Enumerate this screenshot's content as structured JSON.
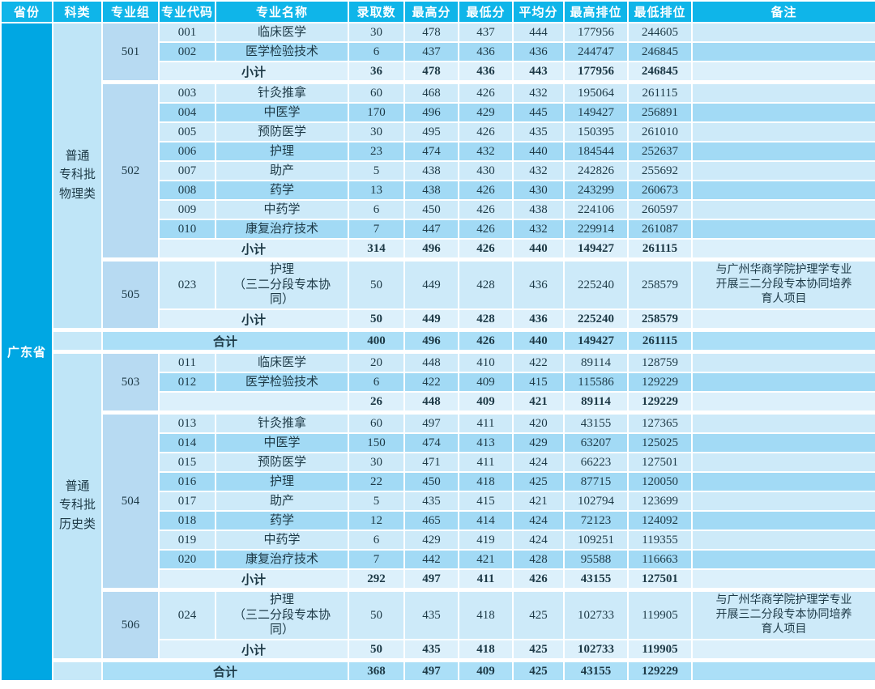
{
  "colors": {
    "header_bg": "#0fb5e9",
    "province_bg": "#00a7e3",
    "category_bg": "#bfe5f7",
    "group_bg": "#b7daf2",
    "row_light": "#cdeaf9",
    "row_dark": "#a2daf5",
    "subtotal_bg": "#dcf0fb",
    "total_bg": "#abdff7",
    "grid": "#ffffff",
    "text": "#1d3946"
  },
  "table": {
    "headers": [
      "省份",
      "科类",
      "专业组",
      "专业代码",
      "专业名称",
      "录取数",
      "最高分",
      "最低分",
      "平均分",
      "最高排位",
      "最低排位",
      "备注"
    ],
    "province": "广东省",
    "sections": [
      {
        "category": "普通\n专科批\n物理类",
        "groups": [
          {
            "group": "501",
            "rows": [
              {
                "code": "001",
                "name": "临床医学",
                "count": "30",
                "max": "478",
                "min": "437",
                "avg": "444",
                "maxRank": "177956",
                "minRank": "244605",
                "remark": ""
              },
              {
                "code": "002",
                "name": "医学检验技术",
                "count": "6",
                "max": "437",
                "min": "436",
                "avg": "436",
                "maxRank": "244747",
                "minRank": "246845",
                "remark": ""
              }
            ],
            "subtotal": {
              "label": "小计",
              "count": "36",
              "max": "478",
              "min": "436",
              "avg": "443",
              "maxRank": "177956",
              "minRank": "246845",
              "remark": ""
            }
          },
          {
            "group": "502",
            "rows": [
              {
                "code": "003",
                "name": "针灸推拿",
                "count": "60",
                "max": "468",
                "min": "426",
                "avg": "432",
                "maxRank": "195064",
                "minRank": "261115",
                "remark": ""
              },
              {
                "code": "004",
                "name": "中医学",
                "count": "170",
                "max": "496",
                "min": "429",
                "avg": "445",
                "maxRank": "149427",
                "minRank": "256891",
                "remark": ""
              },
              {
                "code": "005",
                "name": "预防医学",
                "count": "30",
                "max": "495",
                "min": "426",
                "avg": "435",
                "maxRank": "150395",
                "minRank": "261010",
                "remark": ""
              },
              {
                "code": "006",
                "name": "护理",
                "count": "23",
                "max": "474",
                "min": "432",
                "avg": "440",
                "maxRank": "184544",
                "minRank": "252637",
                "remark": ""
              },
              {
                "code": "007",
                "name": "助产",
                "count": "5",
                "max": "438",
                "min": "430",
                "avg": "432",
                "maxRank": "242826",
                "minRank": "255692",
                "remark": ""
              },
              {
                "code": "008",
                "name": "药学",
                "count": "13",
                "max": "438",
                "min": "426",
                "avg": "430",
                "maxRank": "243299",
                "minRank": "260673",
                "remark": ""
              },
              {
                "code": "009",
                "name": "中药学",
                "count": "6",
                "max": "450",
                "min": "426",
                "avg": "438",
                "maxRank": "224106",
                "minRank": "260597",
                "remark": ""
              },
              {
                "code": "010",
                "name": "康复治疗技术",
                "count": "7",
                "max": "447",
                "min": "426",
                "avg": "432",
                "maxRank": "229914",
                "minRank": "261087",
                "remark": ""
              }
            ],
            "subtotal": {
              "label": "小计",
              "count": "314",
              "max": "496",
              "min": "426",
              "avg": "440",
              "maxRank": "149427",
              "minRank": "261115",
              "remark": ""
            }
          },
          {
            "group": "505",
            "rows": [
              {
                "code": "023",
                "name": "护理\n（三二分段专本协\n同）",
                "count": "50",
                "max": "449",
                "min": "428",
                "avg": "436",
                "maxRank": "225240",
                "minRank": "258579",
                "remark": "与广州华商学院护理学专业\n开展三二分段专本协同培养\n育人项目"
              }
            ],
            "subtotal": {
              "label": "小计",
              "count": "50",
              "max": "449",
              "min": "428",
              "avg": "436",
              "maxRank": "225240",
              "minRank": "258579",
              "remark": ""
            }
          }
        ],
        "total": {
          "label": "合计",
          "count": "400",
          "max": "496",
          "min": "426",
          "avg": "440",
          "maxRank": "149427",
          "minRank": "261115",
          "remark": ""
        }
      },
      {
        "category": "普通\n专科批\n历史类",
        "groups": [
          {
            "group": "503",
            "rows": [
              {
                "code": "011",
                "name": "临床医学",
                "count": "20",
                "max": "448",
                "min": "410",
                "avg": "422",
                "maxRank": "89114",
                "minRank": "128759",
                "remark": ""
              },
              {
                "code": "012",
                "name": "医学检验技术",
                "count": "6",
                "max": "422",
                "min": "409",
                "avg": "415",
                "maxRank": "115586",
                "minRank": "129229",
                "remark": ""
              }
            ],
            "subtotal": {
              "label": "",
              "count": "26",
              "max": "448",
              "min": "409",
              "avg": "421",
              "maxRank": "89114",
              "minRank": "129229",
              "remark": ""
            }
          },
          {
            "group": "504",
            "rows": [
              {
                "code": "013",
                "name": "针灸推拿",
                "count": "60",
                "max": "497",
                "min": "411",
                "avg": "420",
                "maxRank": "43155",
                "minRank": "127365",
                "remark": ""
              },
              {
                "code": "014",
                "name": "中医学",
                "count": "150",
                "max": "474",
                "min": "413",
                "avg": "429",
                "maxRank": "63207",
                "minRank": "125025",
                "remark": ""
              },
              {
                "code": "015",
                "name": "预防医学",
                "count": "30",
                "max": "471",
                "min": "411",
                "avg": "424",
                "maxRank": "66223",
                "minRank": "127501",
                "remark": ""
              },
              {
                "code": "016",
                "name": "护理",
                "count": "22",
                "max": "450",
                "min": "418",
                "avg": "425",
                "maxRank": "87715",
                "minRank": "120050",
                "remark": ""
              },
              {
                "code": "017",
                "name": "助产",
                "count": "5",
                "max": "435",
                "min": "415",
                "avg": "421",
                "maxRank": "102794",
                "minRank": "123699",
                "remark": ""
              },
              {
                "code": "018",
                "name": "药学",
                "count": "12",
                "max": "465",
                "min": "414",
                "avg": "424",
                "maxRank": "72123",
                "minRank": "124092",
                "remark": ""
              },
              {
                "code": "019",
                "name": "中药学",
                "count": "6",
                "max": "429",
                "min": "419",
                "avg": "424",
                "maxRank": "109251",
                "minRank": "119355",
                "remark": ""
              },
              {
                "code": "020",
                "name": "康复治疗技术",
                "count": "7",
                "max": "442",
                "min": "421",
                "avg": "428",
                "maxRank": "95588",
                "minRank": "116663",
                "remark": ""
              }
            ],
            "subtotal": {
              "label": "小计",
              "count": "292",
              "max": "497",
              "min": "411",
              "avg": "426",
              "maxRank": "43155",
              "minRank": "127501",
              "remark": ""
            }
          },
          {
            "group": "506",
            "rows": [
              {
                "code": "024",
                "name": "护理\n（三二分段专本协\n同）",
                "count": "50",
                "max": "435",
                "min": "418",
                "avg": "425",
                "maxRank": "102733",
                "minRank": "119905",
                "remark": "与广州华商学院护理学专业\n开展三二分段专本协同培养\n育人项目"
              }
            ],
            "subtotal": {
              "label": "小计",
              "count": "50",
              "max": "435",
              "min": "418",
              "avg": "425",
              "maxRank": "102733",
              "minRank": "119905",
              "remark": ""
            }
          }
        ],
        "total": {
          "label": "合计",
          "count": "368",
          "max": "497",
          "min": "409",
          "avg": "425",
          "maxRank": "43155",
          "minRank": "129229",
          "remark": ""
        }
      }
    ]
  }
}
